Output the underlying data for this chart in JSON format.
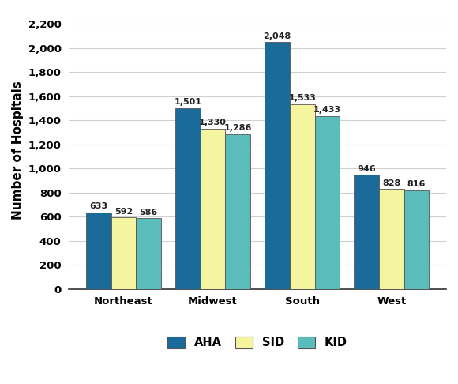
{
  "categories": [
    "Northeast",
    "Midwest",
    "South",
    "West"
  ],
  "series": {
    "AHA": [
      633,
      1501,
      2048,
      946
    ],
    "SID": [
      592,
      1330,
      1533,
      828
    ],
    "KID": [
      586,
      1286,
      1433,
      816
    ]
  },
  "colors": {
    "AHA": "#1a6b9a",
    "SID": "#f5f5a0",
    "KID": "#5bbcbc"
  },
  "ylabel": "Number of Hospitals",
  "ylim": [
    0,
    2300
  ],
  "yticks": [
    0,
    200,
    400,
    600,
    800,
    1000,
    1200,
    1400,
    1600,
    1800,
    2000,
    2200
  ],
  "legend_labels": [
    "AHA",
    "SID",
    "KID"
  ],
  "bar_width": 0.28,
  "label_fontsize": 8,
  "axis_label_fontsize": 11,
  "tick_fontsize": 9.5,
  "background_color": "#ffffff",
  "grid_color": "#d0d0d0"
}
